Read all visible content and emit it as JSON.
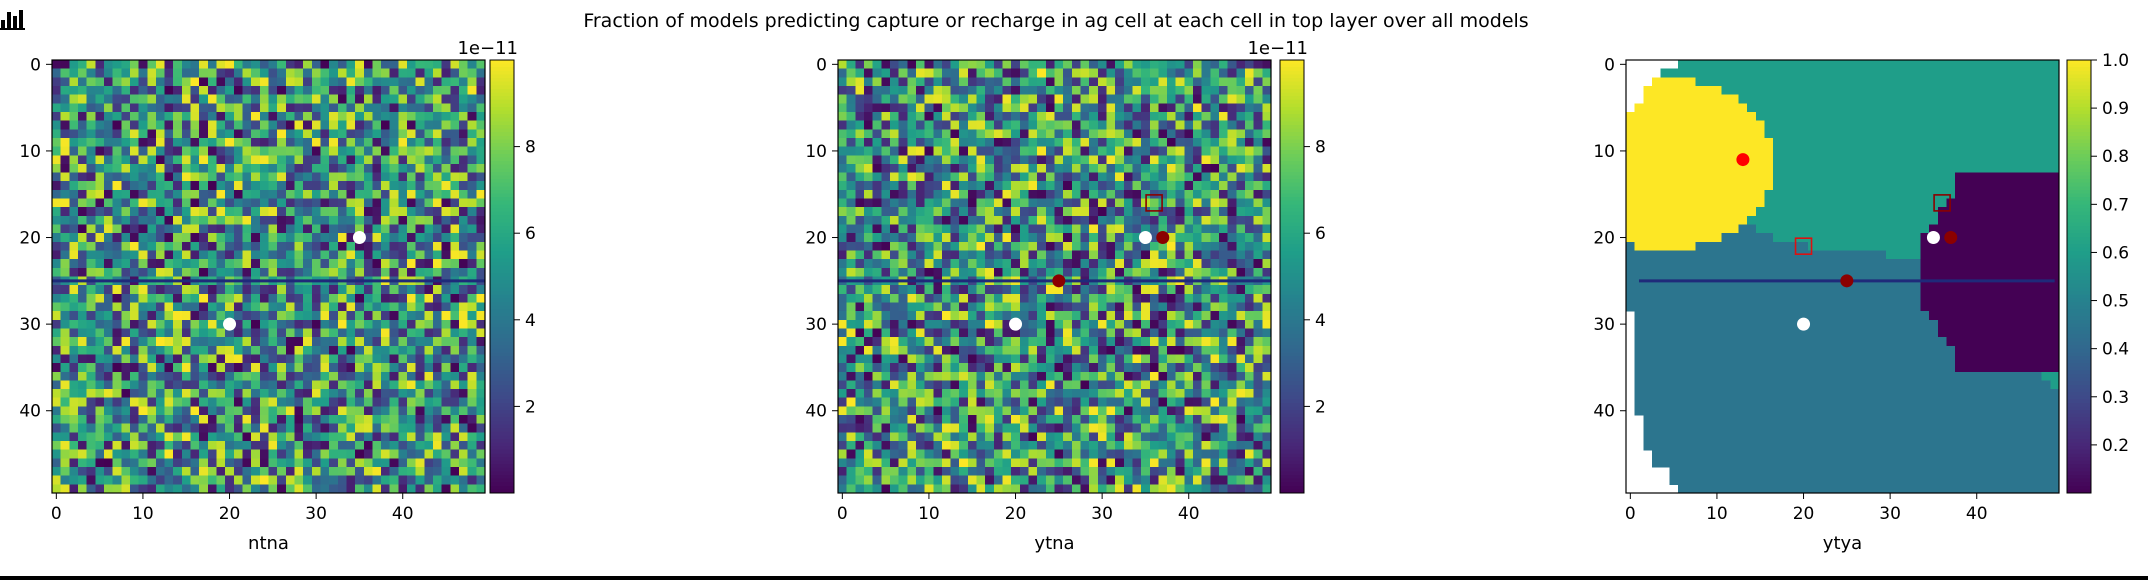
{
  "figure": {
    "title": "Fraction of models predicting capture or recharge in ag cell at each cell in top layer over all models",
    "toolbar_icon": "bar-chart-icon"
  },
  "chart_data": [
    {
      "type": "heatmap",
      "title": "",
      "xlabel": "ntna",
      "ylabel": "",
      "grid_size": [
        50,
        50
      ],
      "pattern": "random noise",
      "xlim": [
        -0.5,
        49.5
      ],
      "ylim": [
        49.5,
        -0.5
      ],
      "xticks": [
        0,
        10,
        20,
        30,
        40
      ],
      "yticks": [
        0,
        10,
        20,
        30,
        40
      ],
      "colormap": "viridis",
      "colorbar": {
        "min": 0,
        "max": 10,
        "ticks": [
          2,
          4,
          6,
          8
        ],
        "offset_label": "1e−11"
      },
      "hline_y": 25,
      "hline_color": "#1f2a7a",
      "points": [
        {
          "x": 35,
          "y": 20,
          "color": "#ffffff",
          "marker": "circle"
        },
        {
          "x": 20,
          "y": 30,
          "color": "#ffffff",
          "marker": "circle"
        }
      ]
    },
    {
      "type": "heatmap",
      "title": "",
      "xlabel": "ytna",
      "ylabel": "",
      "grid_size": [
        50,
        50
      ],
      "pattern": "random noise",
      "xlim": [
        -0.5,
        49.5
      ],
      "ylim": [
        49.5,
        -0.5
      ],
      "xticks": [
        0,
        10,
        20,
        30,
        40
      ],
      "yticks": [
        0,
        10,
        20,
        30,
        40
      ],
      "colormap": "viridis",
      "colorbar": {
        "min": 0,
        "max": 10,
        "ticks": [
          2,
          4,
          6,
          8
        ],
        "offset_label": "1e−11"
      },
      "hline_y": 25,
      "hline_color": "#1f2a7a",
      "points": [
        {
          "x": 35,
          "y": 20,
          "color": "#ffffff",
          "marker": "circle"
        },
        {
          "x": 20,
          "y": 30,
          "color": "#ffffff",
          "marker": "circle"
        },
        {
          "x": 37,
          "y": 20,
          "color": "#8b0000",
          "marker": "circle"
        },
        {
          "x": 25,
          "y": 25,
          "color": "#8b0000",
          "marker": "circle"
        },
        {
          "x": 36,
          "y": 16,
          "color": "#8b0000",
          "marker": "square-open"
        }
      ]
    },
    {
      "type": "heatmap",
      "title": "",
      "xlabel": "ytya",
      "ylabel": "",
      "grid_size": [
        50,
        50
      ],
      "pattern": "capture zones",
      "xlim": [
        -0.5,
        49.5
      ],
      "ylim": [
        49.5,
        -0.5
      ],
      "xticks": [
        0,
        10,
        20,
        30,
        40
      ],
      "yticks": [
        0,
        10,
        20,
        30,
        40
      ],
      "colormap": "viridis",
      "colorbar": {
        "min": 0.1,
        "max": 1.0,
        "ticks": [
          0.2,
          0.3,
          0.4,
          0.5,
          0.6,
          0.7,
          0.8,
          0.9,
          1.0
        ],
        "offset_label": ""
      },
      "regions": {
        "outside": "blank",
        "upper_band": 0.6,
        "lower_band": 0.45,
        "left_zone": 1.0,
        "right_zone": 0.1
      },
      "hline_y": 25,
      "hline_x_range": [
        1,
        49
      ],
      "hline_color": "#1f2a7a",
      "points": [
        {
          "x": 13,
          "y": 11,
          "color": "#ff0000",
          "marker": "circle"
        },
        {
          "x": 35,
          "y": 20,
          "color": "#ffffff",
          "marker": "circle"
        },
        {
          "x": 37,
          "y": 20,
          "color": "#8b0000",
          "marker": "circle"
        },
        {
          "x": 25,
          "y": 25,
          "color": "#8b0000",
          "marker": "circle"
        },
        {
          "x": 20,
          "y": 30,
          "color": "#ffffff",
          "marker": "circle"
        },
        {
          "x": 20,
          "y": 21,
          "color": "#dd1111",
          "marker": "square-open"
        },
        {
          "x": 36,
          "y": 16,
          "color": "#8b0000",
          "marker": "square-open"
        }
      ]
    }
  ]
}
